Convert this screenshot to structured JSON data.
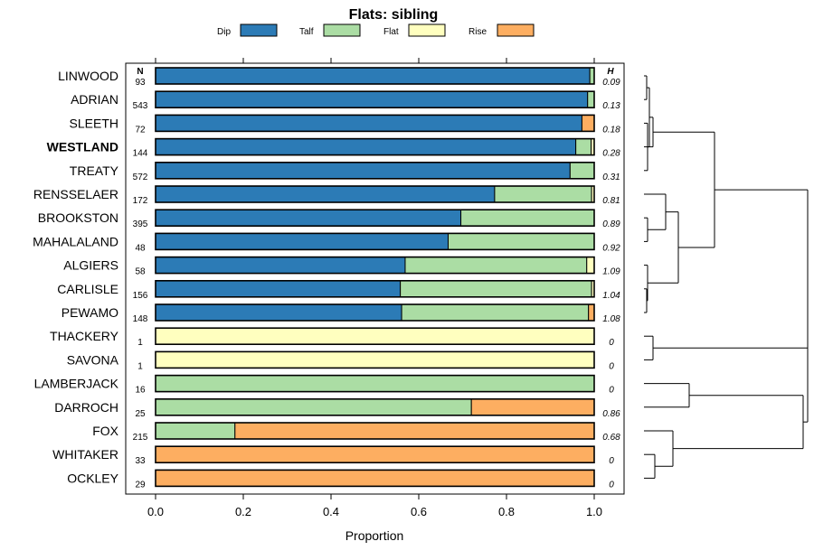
{
  "chart_data": {
    "type": "bar",
    "stacked": true,
    "orientation": "horizontal",
    "title": "Flats: sibling",
    "xlabel": "Proportion",
    "xlim": [
      0,
      1
    ],
    "xticks": [
      "0.0",
      "0.2",
      "0.4",
      "0.6",
      "0.8",
      "1.0"
    ],
    "n_header": "N",
    "h_header": "H",
    "highlight": "WESTLAND",
    "series": [
      {
        "name": "Dip",
        "color": "#2c7bb6"
      },
      {
        "name": "Talf",
        "color": "#abdda4"
      },
      {
        "name": "Flat",
        "color": "#ffffbf"
      },
      {
        "name": "Rise",
        "color": "#fdae61"
      }
    ],
    "rows": [
      {
        "label": "LINWOOD",
        "n": "93",
        "h": "0.09",
        "values": [
          0.99,
          0.01,
          0.0,
          0.0
        ]
      },
      {
        "label": "ADRIAN",
        "n": "543",
        "h": "0.13",
        "values": [
          0.985,
          0.015,
          0.0,
          0.0
        ]
      },
      {
        "label": "SLEETH",
        "n": "72",
        "h": "0.18",
        "values": [
          0.972,
          0.0,
          0.0,
          0.028
        ]
      },
      {
        "label": "WESTLAND",
        "n": "144",
        "h": "0.28",
        "values": [
          0.958,
          0.035,
          0.007,
          0.0
        ]
      },
      {
        "label": "TREATY",
        "n": "572",
        "h": "0.31",
        "values": [
          0.945,
          0.055,
          0.0,
          0.0
        ]
      },
      {
        "label": "RENSSELAER",
        "n": "172",
        "h": "0.81",
        "values": [
          0.773,
          0.221,
          0.006,
          0.0
        ]
      },
      {
        "label": "BROOKSTON",
        "n": "395",
        "h": "0.89",
        "values": [
          0.696,
          0.304,
          0.0,
          0.0
        ]
      },
      {
        "label": "MAHALALAND",
        "n": "48",
        "h": "0.92",
        "values": [
          0.667,
          0.333,
          0.0,
          0.0
        ]
      },
      {
        "label": "ALGIERS",
        "n": "58",
        "h": "1.09",
        "values": [
          0.569,
          0.414,
          0.017,
          0.0
        ]
      },
      {
        "label": "CARLISLE",
        "n": "156",
        "h": "1.04",
        "values": [
          0.558,
          0.436,
          0.006,
          0.0
        ]
      },
      {
        "label": "PEWAMO",
        "n": "148",
        "h": "1.08",
        "values": [
          0.561,
          0.426,
          0.0,
          0.013
        ]
      },
      {
        "label": "THACKERY",
        "n": "1",
        "h": "0",
        "values": [
          0.0,
          0.0,
          1.0,
          0.0
        ]
      },
      {
        "label": "SAVONA",
        "n": "1",
        "h": "0",
        "values": [
          0.0,
          0.0,
          1.0,
          0.0
        ]
      },
      {
        "label": "LAMBERJACK",
        "n": "16",
        "h": "0",
        "values": [
          0.0,
          1.0,
          0.0,
          0.0
        ]
      },
      {
        "label": "DARROCH",
        "n": "25",
        "h": "0.86",
        "values": [
          0.0,
          0.72,
          0.0,
          0.28
        ]
      },
      {
        "label": "FOX",
        "n": "215",
        "h": "0.68",
        "values": [
          0.0,
          0.181,
          0.0,
          0.819
        ]
      },
      {
        "label": "WHITAKER",
        "n": "33",
        "h": "0",
        "values": [
          0.0,
          0.0,
          0.0,
          1.0
        ]
      },
      {
        "label": "OCKLEY",
        "n": "29",
        "h": "0",
        "values": [
          0.0,
          0.0,
          0.0,
          1.0
        ]
      }
    ],
    "dendrogram_note": "hierarchical clustering of rows (unlabeled)"
  }
}
